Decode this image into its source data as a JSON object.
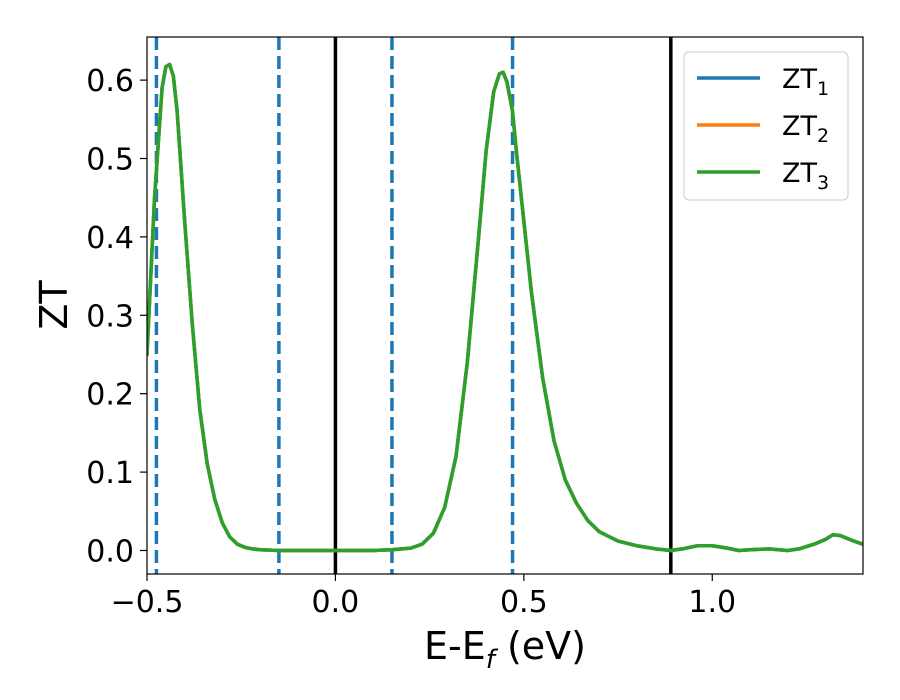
{
  "chart_data": {
    "type": "line",
    "xlabel": {
      "main": "E-E",
      "sub": "f",
      "unit": " (eV)"
    },
    "ylabel": "ZT",
    "xlim": [
      -0.5,
      1.4
    ],
    "ylim": [
      -0.03,
      0.655
    ],
    "xticks": [
      {
        "value": -0.5,
        "label": "−0.5"
      },
      {
        "value": 0.0,
        "label": "0.0"
      },
      {
        "value": 0.5,
        "label": "0.5"
      },
      {
        "value": 1.0,
        "label": "1.0"
      }
    ],
    "yticks": [
      {
        "value": 0.0,
        "label": "0.0"
      },
      {
        "value": 0.1,
        "label": "0.1"
      },
      {
        "value": 0.2,
        "label": "0.2"
      },
      {
        "value": 0.3,
        "label": "0.3"
      },
      {
        "value": 0.4,
        "label": "0.4"
      },
      {
        "value": 0.5,
        "label": "0.5"
      },
      {
        "value": 0.6,
        "label": "0.6"
      }
    ],
    "grid": false,
    "legend_position": "top-right",
    "series": [
      {
        "name": "ZT",
        "sub": "1",
        "color": "#1f77b4",
        "x": [
          -0.5,
          -0.48,
          -0.46,
          -0.45,
          -0.44,
          -0.43,
          -0.42,
          -0.41,
          -0.4,
          -0.38,
          -0.36,
          -0.34,
          -0.32,
          -0.3,
          -0.28,
          -0.26,
          -0.24,
          -0.22,
          -0.2,
          -0.15,
          -0.1,
          0.0,
          0.1,
          0.15,
          0.2,
          0.23,
          0.26,
          0.29,
          0.32,
          0.35,
          0.38,
          0.4,
          0.42,
          0.435,
          0.445,
          0.455,
          0.47,
          0.48,
          0.5,
          0.52,
          0.55,
          0.58,
          0.61,
          0.64,
          0.67,
          0.7,
          0.75,
          0.8,
          0.85,
          0.89,
          0.92,
          0.96,
          1.0,
          1.04,
          1.07,
          1.1,
          1.15,
          1.2,
          1.23,
          1.27,
          1.3,
          1.32,
          1.34,
          1.37,
          1.4
        ],
        "y": [
          0.25,
          0.45,
          0.59,
          0.617,
          0.62,
          0.605,
          0.56,
          0.49,
          0.42,
          0.29,
          0.18,
          0.11,
          0.065,
          0.035,
          0.017,
          0.008,
          0.004,
          0.002,
          0.001,
          0.0,
          0.0,
          0.0,
          0.0,
          0.001,
          0.003,
          0.008,
          0.022,
          0.055,
          0.12,
          0.24,
          0.4,
          0.51,
          0.585,
          0.608,
          0.61,
          0.598,
          0.56,
          0.51,
          0.42,
          0.33,
          0.22,
          0.14,
          0.09,
          0.06,
          0.038,
          0.024,
          0.012,
          0.006,
          0.002,
          0.0,
          0.002,
          0.006,
          0.006,
          0.003,
          0.0,
          0.001,
          0.002,
          0.0,
          0.002,
          0.008,
          0.014,
          0.02,
          0.019,
          0.013,
          0.008
        ]
      },
      {
        "name": "ZT",
        "sub": "2",
        "color": "#ff7f0e",
        "x": [
          -0.5,
          -0.48,
          -0.46,
          -0.45,
          -0.44,
          -0.43,
          -0.42,
          -0.41,
          -0.4,
          -0.38,
          -0.36,
          -0.34,
          -0.32,
          -0.3,
          -0.28,
          -0.26,
          -0.24,
          -0.22,
          -0.2,
          -0.15,
          -0.1,
          0.0,
          0.1,
          0.15,
          0.2,
          0.23,
          0.26,
          0.29,
          0.32,
          0.35,
          0.38,
          0.4,
          0.42,
          0.435,
          0.445,
          0.455,
          0.47,
          0.48,
          0.5,
          0.52,
          0.55,
          0.58,
          0.61,
          0.64,
          0.67,
          0.7,
          0.75,
          0.8,
          0.85,
          0.89,
          0.92,
          0.96,
          1.0,
          1.04,
          1.07,
          1.1,
          1.15,
          1.2,
          1.23,
          1.27,
          1.3,
          1.32,
          1.34,
          1.37,
          1.4
        ],
        "y": [
          0.25,
          0.45,
          0.59,
          0.617,
          0.62,
          0.605,
          0.56,
          0.49,
          0.42,
          0.29,
          0.18,
          0.11,
          0.065,
          0.035,
          0.017,
          0.008,
          0.004,
          0.002,
          0.001,
          0.0,
          0.0,
          0.0,
          0.0,
          0.001,
          0.003,
          0.008,
          0.022,
          0.055,
          0.12,
          0.24,
          0.4,
          0.51,
          0.585,
          0.608,
          0.61,
          0.598,
          0.56,
          0.51,
          0.42,
          0.33,
          0.22,
          0.14,
          0.09,
          0.06,
          0.038,
          0.024,
          0.012,
          0.006,
          0.002,
          0.0,
          0.002,
          0.006,
          0.006,
          0.003,
          0.0,
          0.001,
          0.002,
          0.0,
          0.002,
          0.008,
          0.014,
          0.02,
          0.019,
          0.013,
          0.008
        ]
      },
      {
        "name": "ZT",
        "sub": "3",
        "color": "#2ca02c",
        "x": [
          -0.5,
          -0.48,
          -0.46,
          -0.45,
          -0.44,
          -0.43,
          -0.42,
          -0.41,
          -0.4,
          -0.38,
          -0.36,
          -0.34,
          -0.32,
          -0.3,
          -0.28,
          -0.26,
          -0.24,
          -0.22,
          -0.2,
          -0.15,
          -0.1,
          0.0,
          0.1,
          0.15,
          0.2,
          0.23,
          0.26,
          0.29,
          0.32,
          0.35,
          0.38,
          0.4,
          0.42,
          0.435,
          0.445,
          0.455,
          0.47,
          0.48,
          0.5,
          0.52,
          0.55,
          0.58,
          0.61,
          0.64,
          0.67,
          0.7,
          0.75,
          0.8,
          0.85,
          0.89,
          0.92,
          0.96,
          1.0,
          1.04,
          1.07,
          1.1,
          1.15,
          1.2,
          1.23,
          1.27,
          1.3,
          1.32,
          1.34,
          1.37,
          1.4
        ],
        "y": [
          0.25,
          0.45,
          0.59,
          0.617,
          0.62,
          0.605,
          0.56,
          0.49,
          0.42,
          0.29,
          0.18,
          0.11,
          0.065,
          0.035,
          0.017,
          0.008,
          0.004,
          0.002,
          0.001,
          0.0,
          0.0,
          0.0,
          0.0,
          0.001,
          0.003,
          0.008,
          0.022,
          0.055,
          0.12,
          0.24,
          0.4,
          0.51,
          0.585,
          0.608,
          0.61,
          0.598,
          0.56,
          0.51,
          0.42,
          0.33,
          0.22,
          0.14,
          0.09,
          0.06,
          0.038,
          0.024,
          0.012,
          0.006,
          0.002,
          0.0,
          0.002,
          0.006,
          0.006,
          0.003,
          0.0,
          0.001,
          0.002,
          0.0,
          0.002,
          0.008,
          0.014,
          0.02,
          0.019,
          0.013,
          0.008
        ]
      }
    ],
    "vlines": [
      {
        "x": -0.475,
        "style": "dashed",
        "color": "#1f77b4"
      },
      {
        "x": -0.15,
        "style": "dashed",
        "color": "#1f77b4"
      },
      {
        "x": 0.0,
        "style": "solid",
        "color": "#000000"
      },
      {
        "x": 0.15,
        "style": "dashed",
        "color": "#1f77b4"
      },
      {
        "x": 0.47,
        "style": "dashed",
        "color": "#1f77b4"
      },
      {
        "x": 0.89,
        "style": "solid",
        "color": "#000000"
      }
    ]
  }
}
